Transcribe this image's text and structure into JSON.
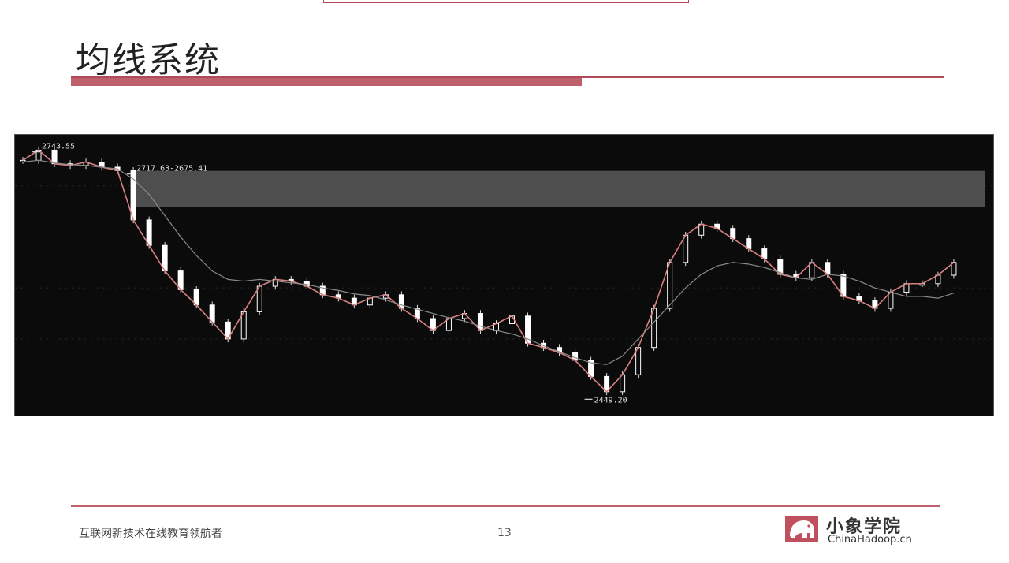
{
  "slide": {
    "title": "均线系统",
    "footer_text": "互联网新技术在线教育领航者",
    "page_number": "13",
    "logo_name": "小象学院",
    "logo_url": "ChinaHadoop.cn"
  },
  "colors": {
    "accent": "#c0606d",
    "chart_bg": "#0c0b0b",
    "ma_short": "#d98080",
    "ma_long": "#8a8a8a",
    "band": "#5a5a5a"
  },
  "chart_data": {
    "type": "line",
    "title": "",
    "xlabel": "",
    "ylabel": "",
    "ylim": [
      2430,
      2760
    ],
    "x": [
      1,
      3,
      5,
      7,
      9,
      11,
      13,
      15,
      17,
      19,
      21,
      23,
      25,
      27,
      29,
      31,
      33,
      35,
      37,
      39,
      41,
      43,
      45,
      47,
      49,
      51,
      53,
      55,
      57,
      59,
      61,
      63,
      65,
      67,
      69,
      71,
      73,
      75,
      77,
      79,
      81,
      83,
      85,
      87,
      89,
      91,
      93,
      95,
      97,
      99,
      101,
      103,
      105,
      107,
      109,
      111,
      113,
      115,
      117,
      119
    ],
    "series": [
      {
        "name": "",
        "values": [
          2730,
          2742,
          2726,
          2724,
          2728,
          2722,
          2718,
          2660,
          2630,
          2600,
          2578,
          2560,
          2540,
          2520,
          2552,
          2582,
          2590,
          2588,
          2582,
          2572,
          2568,
          2560,
          2568,
          2572,
          2556,
          2544,
          2530,
          2544,
          2550,
          2530,
          2538,
          2547,
          2515,
          2510,
          2504,
          2495,
          2476,
          2458,
          2478,
          2510,
          2556,
          2610,
          2642,
          2655,
          2650,
          2638,
          2626,
          2614,
          2596,
          2592,
          2610,
          2596,
          2570,
          2565,
          2556,
          2575,
          2585,
          2585,
          2595,
          2610
        ]
      },
      {
        "name": "",
        "values": [
          2728,
          2730,
          2727,
          2725,
          2724,
          2722,
          2720,
          2708,
          2690,
          2665,
          2640,
          2618,
          2600,
          2590,
          2588,
          2590,
          2588,
          2586,
          2584,
          2580,
          2577,
          2573,
          2571,
          2566,
          2560,
          2555,
          2550,
          2545,
          2541,
          2535,
          2530,
          2526,
          2520,
          2512,
          2505,
          2498,
          2492,
          2490,
          2500,
          2520,
          2540,
          2560,
          2580,
          2596,
          2606,
          2610,
          2608,
          2604,
          2598,
          2592,
          2590,
          2596,
          2594,
          2588,
          2580,
          2575,
          2570,
          2570,
          2568,
          2574
        ]
      }
    ],
    "annotations": [
      {
        "text": "2743.55",
        "x": 3,
        "y": 2743.55
      },
      {
        "text": "2717.63-2675.41",
        "x": 15,
        "y": 2717.63
      },
      {
        "text": "2449.20",
        "x": 73,
        "y": 2449.2
      }
    ],
    "shaded_range": {
      "y": [
        2675.41,
        2717.63
      ],
      "x": [
        15,
        123
      ]
    },
    "grid": true
  }
}
